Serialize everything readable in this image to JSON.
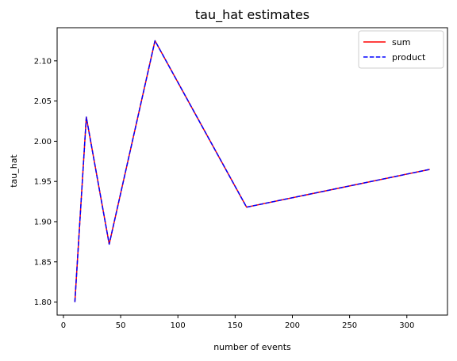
{
  "chart_data": {
    "type": "line",
    "title": "tau_hat estimates",
    "xlabel": "number of events",
    "ylabel": "tau_hat",
    "x": [
      10,
      20,
      40,
      80,
      160,
      320
    ],
    "series": [
      {
        "name": "sum",
        "color": "#ff0000",
        "linestyle": "solid",
        "values": [
          1.8,
          2.03,
          1.872,
          2.125,
          1.918,
          1.965
        ]
      },
      {
        "name": "product",
        "color": "#0000ff",
        "linestyle": "dashed",
        "values": [
          1.8,
          2.03,
          1.872,
          2.125,
          1.918,
          1.965
        ]
      }
    ],
    "xlim": [
      -5.5,
      335.5
    ],
    "ylim": [
      1.7838,
      2.1412
    ],
    "xticks": [
      0,
      50,
      100,
      150,
      200,
      250,
      300
    ],
    "xtick_labels": [
      "0",
      "50",
      "100",
      "150",
      "200",
      "250",
      "300"
    ],
    "yticks": [
      1.8,
      1.85,
      1.9,
      1.95,
      2.0,
      2.05,
      2.1
    ],
    "ytick_labels": [
      "1.80",
      "1.85",
      "1.90",
      "1.95",
      "2.00",
      "2.05",
      "2.10"
    ],
    "grid": false,
    "legend_position": "top-right"
  }
}
